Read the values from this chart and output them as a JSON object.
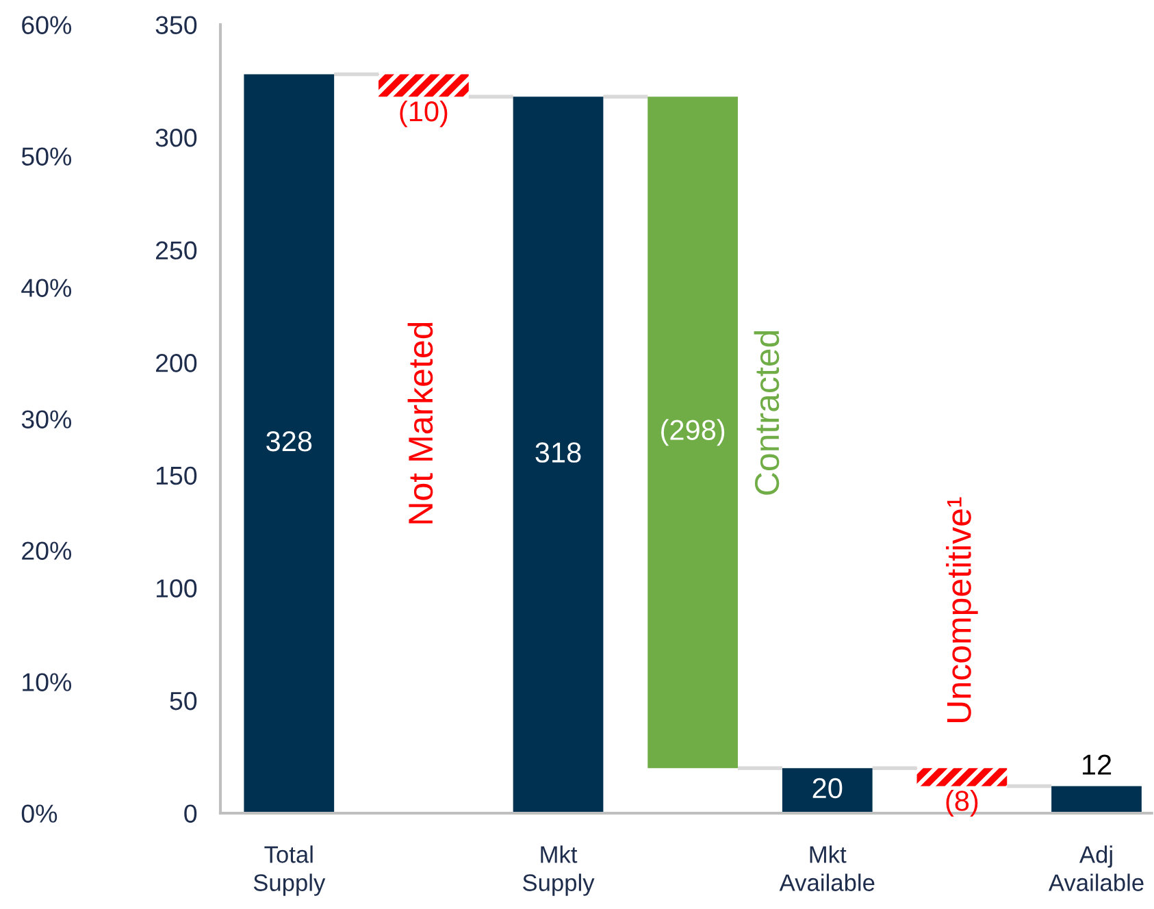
{
  "chart_data": {
    "type": "bar",
    "categories": [
      "Total\nSupply",
      null,
      "Mkt\nSupply",
      null,
      "Mkt\nAvailable",
      null,
      "Adj\nAvailable"
    ],
    "values": [
      328,
      -10,
      318,
      -298,
      20,
      -8,
      12
    ],
    "base": [
      0,
      328,
      0,
      318,
      0,
      20,
      0
    ],
    "colors": [
      "#003150",
      "#ff0000",
      "#003150",
      "#70ad47",
      "#003150",
      "#ff0000",
      "#003150"
    ],
    "value_labels": [
      "328",
      "(10)",
      "318",
      "(298)",
      "20",
      "(8)",
      "12"
    ],
    "ylim": [
      0,
      350
    ],
    "yticks": [
      0,
      50,
      100,
      150,
      200,
      250,
      300,
      350
    ],
    "y2lim": [
      0,
      60
    ],
    "y2ticks": [
      {
        "value": 0,
        "label": "0%"
      },
      {
        "value": 10,
        "label": "10%"
      },
      {
        "value": 20,
        "label": "20%"
      },
      {
        "value": 30,
        "label": "30%"
      },
      {
        "value": 40,
        "label": "40%"
      },
      {
        "value": 50,
        "label": "50%"
      },
      {
        "value": 60,
        "label": "60%"
      }
    ],
    "annotations": [
      "Not Marketed",
      "Contracted",
      "Uncompetitive¹"
    ],
    "grid": false
  }
}
